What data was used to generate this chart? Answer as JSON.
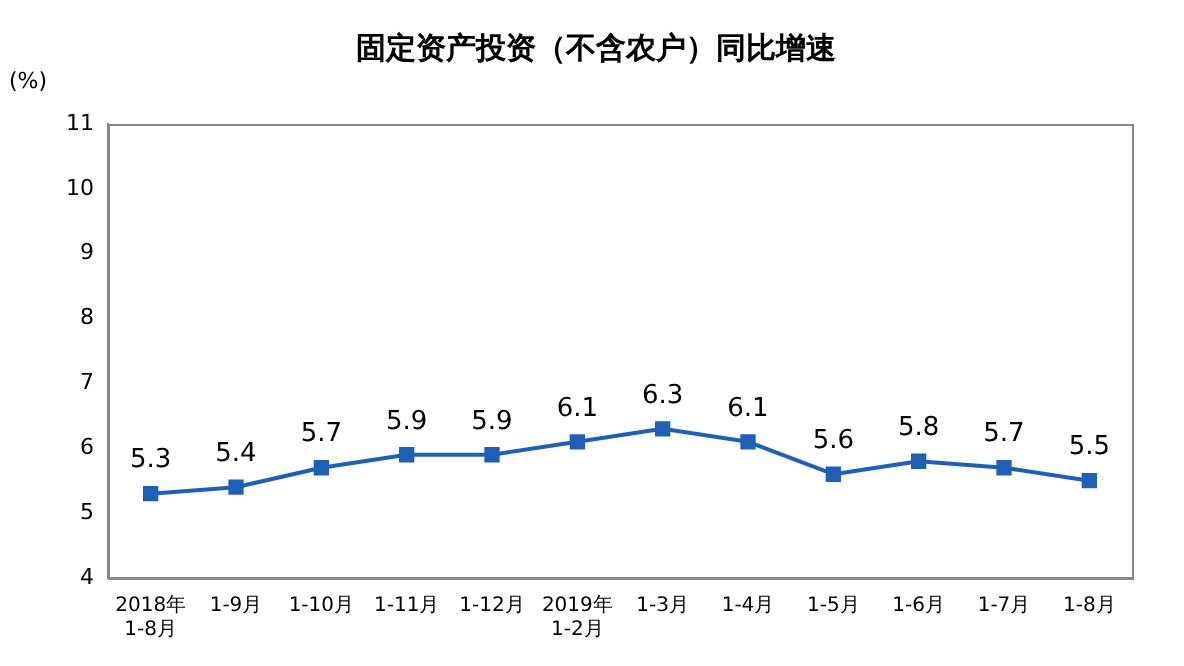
{
  "chart_data": {
    "type": "line",
    "title": "固定资产投资（不含农户）同比增速",
    "ylabel": "(%)",
    "categories": [
      "2018年\n1-8月",
      "1-9月",
      "1-10月",
      "1-11月",
      "1-12月",
      "2019年\n1-2月",
      "1-3月",
      "1-4月",
      "1-5月",
      "1-6月",
      "1-7月",
      "1-8月"
    ],
    "series": [
      {
        "color": "#1f5fb4",
        "values": [
          5.3,
          5.4,
          5.7,
          5.9,
          5.9,
          6.1,
          6.3,
          6.1,
          5.6,
          5.8,
          5.7,
          5.5
        ]
      }
    ],
    "ylim": [
      4,
      11
    ],
    "yticks": [
      4,
      5,
      6,
      7,
      8,
      9,
      10,
      11
    ],
    "grid": false,
    "legend": false,
    "marker": "square",
    "line_style": "solid",
    "data_labels": true
  }
}
